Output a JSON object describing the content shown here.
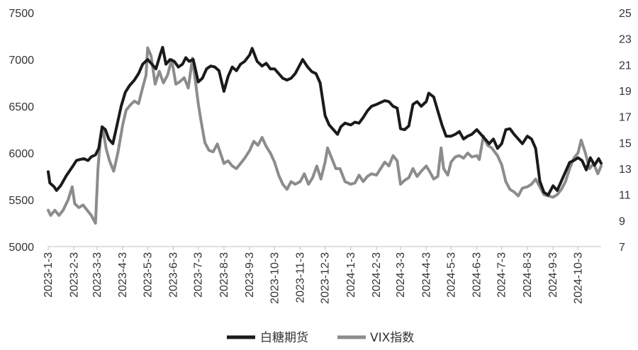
{
  "chart_data": {
    "type": "line",
    "title": "",
    "xlabel": "",
    "ylabel": "",
    "grid": false,
    "legend_position": "bottom",
    "x_axis": {
      "range": [
        "2023-01-03",
        "2024-10-31"
      ],
      "tick_labels": [
        "2023-1-3",
        "2023-2-3",
        "2023-3-3",
        "2023-4-3",
        "2023-5-3",
        "2023-6-3",
        "2023-7-3",
        "2023-8-3",
        "2023-9-3",
        "2023-10-3",
        "2023-11-3",
        "2023-12-3",
        "2024-1-3",
        "2024-2-3",
        "2024-3-3",
        "2024-4-3",
        "2024-5-3",
        "2024-6-3",
        "2024-7-3",
        "2024-8-3",
        "2024-9-3",
        "2024-10-3"
      ]
    },
    "y_left": {
      "range": [
        5000,
        7500
      ],
      "ticks": [
        "5000",
        "5500",
        "6000",
        "6500",
        "7000",
        "7500"
      ]
    },
    "y_right": {
      "range": [
        7,
        25
      ],
      "ticks": [
        "7",
        "9",
        "11",
        "13",
        "15",
        "17",
        "19",
        "21",
        "23",
        "25"
      ]
    },
    "series": [
      {
        "name": "白糖期货",
        "axis": "left",
        "color": "#1a1a1a",
        "points": [
          [
            "2023-01-03",
            5800
          ],
          [
            "2023-01-05",
            5680
          ],
          [
            "2023-01-10",
            5640
          ],
          [
            "2023-01-13",
            5600
          ],
          [
            "2023-01-18",
            5650
          ],
          [
            "2023-01-25",
            5760
          ],
          [
            "2023-02-01",
            5850
          ],
          [
            "2023-02-06",
            5920
          ],
          [
            "2023-02-10",
            5930
          ],
          [
            "2023-02-15",
            5940
          ],
          [
            "2023-02-20",
            5920
          ],
          [
            "2023-02-24",
            5960
          ],
          [
            "2023-03-01",
            5980
          ],
          [
            "2023-03-05",
            6050
          ],
          [
            "2023-03-09",
            6280
          ],
          [
            "2023-03-13",
            6250
          ],
          [
            "2023-03-17",
            6150
          ],
          [
            "2023-03-22",
            6100
          ],
          [
            "2023-03-27",
            6300
          ],
          [
            "2023-04-01",
            6500
          ],
          [
            "2023-04-06",
            6650
          ],
          [
            "2023-04-11",
            6720
          ],
          [
            "2023-04-17",
            6780
          ],
          [
            "2023-04-22",
            6850
          ],
          [
            "2023-04-27",
            6950
          ],
          [
            "2023-05-03",
            7000
          ],
          [
            "2023-05-08",
            6950
          ],
          [
            "2023-05-13",
            6900
          ],
          [
            "2023-05-18",
            7050
          ],
          [
            "2023-05-21",
            7130
          ],
          [
            "2023-05-25",
            6950
          ],
          [
            "2023-05-30",
            7000
          ],
          [
            "2023-06-04",
            6980
          ],
          [
            "2023-06-09",
            6920
          ],
          [
            "2023-06-14",
            6950
          ],
          [
            "2023-06-18",
            7020
          ],
          [
            "2023-06-22",
            6980
          ],
          [
            "2023-06-27",
            7000
          ],
          [
            "2023-07-03",
            6760
          ],
          [
            "2023-07-08",
            6800
          ],
          [
            "2023-07-13",
            6900
          ],
          [
            "2023-07-18",
            6930
          ],
          [
            "2023-07-23",
            6920
          ],
          [
            "2023-07-28",
            6880
          ],
          [
            "2023-08-03",
            6660
          ],
          [
            "2023-08-08",
            6820
          ],
          [
            "2023-08-13",
            6920
          ],
          [
            "2023-08-18",
            6880
          ],
          [
            "2023-08-23",
            6950
          ],
          [
            "2023-08-28",
            6980
          ],
          [
            "2023-09-03",
            7050
          ],
          [
            "2023-09-06",
            7120
          ],
          [
            "2023-09-12",
            6980
          ],
          [
            "2023-09-18",
            6930
          ],
          [
            "2023-09-23",
            6960
          ],
          [
            "2023-09-28",
            6900
          ],
          [
            "2023-10-03",
            6900
          ],
          [
            "2023-10-08",
            6850
          ],
          [
            "2023-10-13",
            6800
          ],
          [
            "2023-10-18",
            6780
          ],
          [
            "2023-10-23",
            6800
          ],
          [
            "2023-10-28",
            6850
          ],
          [
            "2023-11-03",
            6950
          ],
          [
            "2023-11-06",
            7000
          ],
          [
            "2023-11-12",
            6920
          ],
          [
            "2023-11-17",
            6870
          ],
          [
            "2023-11-22",
            6850
          ],
          [
            "2023-11-27",
            6750
          ],
          [
            "2023-12-03",
            6400
          ],
          [
            "2023-12-08",
            6300
          ],
          [
            "2023-12-13",
            6250
          ],
          [
            "2023-12-18",
            6200
          ],
          [
            "2023-12-22",
            6280
          ],
          [
            "2023-12-27",
            6320
          ],
          [
            "2024-01-03",
            6300
          ],
          [
            "2024-01-08",
            6330
          ],
          [
            "2024-01-13",
            6320
          ],
          [
            "2024-01-18",
            6380
          ],
          [
            "2024-01-23",
            6450
          ],
          [
            "2024-01-28",
            6500
          ],
          [
            "2024-02-03",
            6520
          ],
          [
            "2024-02-08",
            6540
          ],
          [
            "2024-02-13",
            6560
          ],
          [
            "2024-02-18",
            6550
          ],
          [
            "2024-02-23",
            6500
          ],
          [
            "2024-02-28",
            6480
          ],
          [
            "2024-03-03",
            6260
          ],
          [
            "2024-03-08",
            6250
          ],
          [
            "2024-03-13",
            6290
          ],
          [
            "2024-03-18",
            6520
          ],
          [
            "2024-03-23",
            6550
          ],
          [
            "2024-03-28",
            6500
          ],
          [
            "2024-04-03",
            6550
          ],
          [
            "2024-04-06",
            6640
          ],
          [
            "2024-04-12",
            6600
          ],
          [
            "2024-04-17",
            6450
          ],
          [
            "2024-04-22",
            6300
          ],
          [
            "2024-04-27",
            6180
          ],
          [
            "2024-05-03",
            6180
          ],
          [
            "2024-05-08",
            6200
          ],
          [
            "2024-05-13",
            6230
          ],
          [
            "2024-05-18",
            6150
          ],
          [
            "2024-05-23",
            6180
          ],
          [
            "2024-05-28",
            6200
          ],
          [
            "2024-06-03",
            6250
          ],
          [
            "2024-06-08",
            6200
          ],
          [
            "2024-06-13",
            6150
          ],
          [
            "2024-06-18",
            6100
          ],
          [
            "2024-06-23",
            6150
          ],
          [
            "2024-06-28",
            6050
          ],
          [
            "2024-07-03",
            6100
          ],
          [
            "2024-07-08",
            6250
          ],
          [
            "2024-07-13",
            6260
          ],
          [
            "2024-07-18",
            6200
          ],
          [
            "2024-07-23",
            6150
          ],
          [
            "2024-07-28",
            6100
          ],
          [
            "2024-08-03",
            6180
          ],
          [
            "2024-08-08",
            6150
          ],
          [
            "2024-08-13",
            6050
          ],
          [
            "2024-08-18",
            5700
          ],
          [
            "2024-08-23",
            5580
          ],
          [
            "2024-08-28",
            5550
          ],
          [
            "2024-09-03",
            5650
          ],
          [
            "2024-09-08",
            5600
          ],
          [
            "2024-09-13",
            5700
          ],
          [
            "2024-09-18",
            5800
          ],
          [
            "2024-09-23",
            5900
          ],
          [
            "2024-09-28",
            5920
          ],
          [
            "2024-10-03",
            5950
          ],
          [
            "2024-10-08",
            5920
          ],
          [
            "2024-10-13",
            5820
          ],
          [
            "2024-10-18",
            5950
          ],
          [
            "2024-10-23",
            5870
          ],
          [
            "2024-10-28",
            5940
          ],
          [
            "2024-10-31",
            5890
          ]
        ]
      },
      {
        "name": "VIX指数",
        "axis": "right",
        "color": "#8c8c8c",
        "points": [
          [
            "2023-01-03",
            9.8
          ],
          [
            "2023-01-06",
            9.4
          ],
          [
            "2023-01-11",
            9.8
          ],
          [
            "2023-01-16",
            9.4
          ],
          [
            "2023-01-21",
            9.8
          ],
          [
            "2023-01-27",
            10.6
          ],
          [
            "2023-02-01",
            11.6
          ],
          [
            "2023-02-04",
            10.3
          ],
          [
            "2023-02-09",
            10.0
          ],
          [
            "2023-02-14",
            10.2
          ],
          [
            "2023-02-19",
            9.8
          ],
          [
            "2023-02-24",
            9.4
          ],
          [
            "2023-03-01",
            8.8
          ],
          [
            "2023-03-04",
            13.0
          ],
          [
            "2023-03-07",
            15.3
          ],
          [
            "2023-03-10",
            16.0
          ],
          [
            "2023-03-14",
            14.5
          ],
          [
            "2023-03-18",
            13.6
          ],
          [
            "2023-03-23",
            12.8
          ],
          [
            "2023-03-28",
            14.2
          ],
          [
            "2023-04-03",
            16.4
          ],
          [
            "2023-04-07",
            17.5
          ],
          [
            "2023-04-12",
            17.9
          ],
          [
            "2023-04-17",
            18.2
          ],
          [
            "2023-04-22",
            18.0
          ],
          [
            "2023-04-26",
            19.0
          ],
          [
            "2023-05-01",
            20.2
          ],
          [
            "2023-05-03",
            22.3
          ],
          [
            "2023-05-07",
            21.7
          ],
          [
            "2023-05-12",
            19.5
          ],
          [
            "2023-05-17",
            20.5
          ],
          [
            "2023-05-22",
            19.6
          ],
          [
            "2023-05-27",
            20.2
          ],
          [
            "2023-06-01",
            21.4
          ],
          [
            "2023-06-06",
            19.5
          ],
          [
            "2023-06-11",
            19.7
          ],
          [
            "2023-06-16",
            20.0
          ],
          [
            "2023-06-21",
            19.2
          ],
          [
            "2023-06-26",
            21.5
          ],
          [
            "2023-07-03",
            18.0
          ],
          [
            "2023-07-06",
            16.8
          ],
          [
            "2023-07-11",
            15.0
          ],
          [
            "2023-07-16",
            14.4
          ],
          [
            "2023-07-21",
            14.3
          ],
          [
            "2023-07-26",
            14.9
          ],
          [
            "2023-08-03",
            13.4
          ],
          [
            "2023-08-08",
            13.6
          ],
          [
            "2023-08-13",
            13.2
          ],
          [
            "2023-08-18",
            13.0
          ],
          [
            "2023-08-23",
            13.4
          ],
          [
            "2023-08-28",
            13.8
          ],
          [
            "2023-09-03",
            14.4
          ],
          [
            "2023-09-08",
            15.1
          ],
          [
            "2023-09-13",
            14.8
          ],
          [
            "2023-09-18",
            15.4
          ],
          [
            "2023-09-23",
            14.7
          ],
          [
            "2023-09-28",
            14.2
          ],
          [
            "2023-10-03",
            13.5
          ],
          [
            "2023-10-08",
            12.5
          ],
          [
            "2023-10-13",
            11.8
          ],
          [
            "2023-10-18",
            11.4
          ],
          [
            "2023-10-23",
            12.0
          ],
          [
            "2023-10-28",
            11.8
          ],
          [
            "2023-11-03",
            12.0
          ],
          [
            "2023-11-08",
            12.6
          ],
          [
            "2023-11-13",
            11.8
          ],
          [
            "2023-11-18",
            12.3
          ],
          [
            "2023-11-23",
            13.2
          ],
          [
            "2023-11-28",
            12.2
          ],
          [
            "2023-12-03",
            13.5
          ],
          [
            "2023-12-06",
            14.6
          ],
          [
            "2023-12-11",
            13.8
          ],
          [
            "2023-12-16",
            13.0
          ],
          [
            "2023-12-21",
            13.0
          ],
          [
            "2023-12-27",
            12.0
          ],
          [
            "2024-01-03",
            11.8
          ],
          [
            "2024-01-08",
            11.9
          ],
          [
            "2024-01-13",
            12.5
          ],
          [
            "2024-01-18",
            12.0
          ],
          [
            "2024-01-23",
            12.4
          ],
          [
            "2024-01-28",
            12.6
          ],
          [
            "2024-02-03",
            12.5
          ],
          [
            "2024-02-08",
            13.0
          ],
          [
            "2024-02-13",
            13.5
          ],
          [
            "2024-02-18",
            13.2
          ],
          [
            "2024-02-23",
            14.0
          ],
          [
            "2024-02-28",
            13.6
          ],
          [
            "2024-03-03",
            11.8
          ],
          [
            "2024-03-08",
            12.1
          ],
          [
            "2024-03-13",
            12.3
          ],
          [
            "2024-03-18",
            13.0
          ],
          [
            "2024-03-23",
            12.4
          ],
          [
            "2024-03-28",
            12.8
          ],
          [
            "2024-04-03",
            13.2
          ],
          [
            "2024-04-07",
            12.8
          ],
          [
            "2024-04-12",
            12.2
          ],
          [
            "2024-04-17",
            12.4
          ],
          [
            "2024-04-21",
            14.6
          ],
          [
            "2024-04-24",
            13.0
          ],
          [
            "2024-04-29",
            12.5
          ],
          [
            "2024-05-03",
            13.5
          ],
          [
            "2024-05-08",
            13.9
          ],
          [
            "2024-05-13",
            14.0
          ],
          [
            "2024-05-18",
            13.8
          ],
          [
            "2024-05-23",
            14.2
          ],
          [
            "2024-05-28",
            13.9
          ],
          [
            "2024-06-03",
            14.0
          ],
          [
            "2024-06-06",
            13.7
          ],
          [
            "2024-06-11",
            15.5
          ],
          [
            "2024-06-16",
            14.8
          ],
          [
            "2024-06-21",
            14.6
          ],
          [
            "2024-06-28",
            14.0
          ],
          [
            "2024-07-03",
            13.3
          ],
          [
            "2024-07-08",
            12.0
          ],
          [
            "2024-07-13",
            11.4
          ],
          [
            "2024-07-18",
            11.2
          ],
          [
            "2024-07-23",
            10.9
          ],
          [
            "2024-07-28",
            11.5
          ],
          [
            "2024-08-03",
            11.6
          ],
          [
            "2024-08-08",
            11.8
          ],
          [
            "2024-08-13",
            12.2
          ],
          [
            "2024-08-18",
            11.6
          ],
          [
            "2024-08-23",
            11.0
          ],
          [
            "2024-08-28",
            10.9
          ],
          [
            "2024-09-03",
            10.8
          ],
          [
            "2024-09-08",
            11.0
          ],
          [
            "2024-09-13",
            11.4
          ],
          [
            "2024-09-18",
            12.0
          ],
          [
            "2024-09-23",
            13.0
          ],
          [
            "2024-09-28",
            13.8
          ],
          [
            "2024-10-03",
            14.2
          ],
          [
            "2024-10-07",
            15.2
          ],
          [
            "2024-10-12",
            14.2
          ],
          [
            "2024-10-17",
            13.0
          ],
          [
            "2024-10-22",
            13.4
          ],
          [
            "2024-10-27",
            12.6
          ],
          [
            "2024-10-31",
            13.2
          ]
        ]
      }
    ]
  }
}
